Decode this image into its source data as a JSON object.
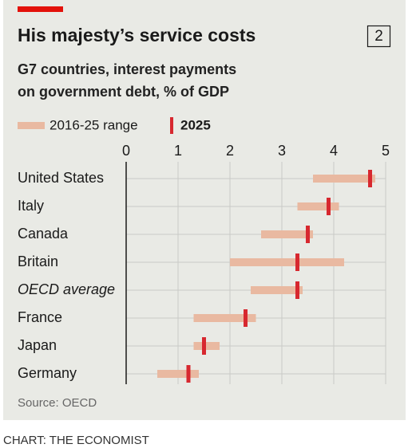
{
  "chart_data": {
    "type": "range-dot",
    "title": "His majesty’s service costs",
    "chart_number": "2",
    "subtitle": [
      "G7 countries, interest payments",
      "on government debt, % of GDP"
    ],
    "categories": [
      "United States",
      "Italy",
      "Canada",
      "Britain",
      "OECD average",
      "France",
      "Japan",
      "Germany"
    ],
    "italic": [
      false,
      false,
      false,
      false,
      true,
      false,
      false,
      false
    ],
    "series": [
      {
        "name": "2016-25 range",
        "color": "#e9b9a1",
        "low": [
          3.6,
          3.3,
          2.6,
          2.0,
          2.4,
          1.3,
          1.3,
          0.6
        ],
        "high": [
          4.8,
          4.1,
          3.6,
          4.2,
          3.4,
          2.5,
          1.8,
          1.4
        ]
      },
      {
        "name": "2025",
        "color": "#d7282f",
        "values": [
          4.7,
          3.9,
          3.5,
          3.3,
          3.3,
          2.3,
          1.5,
          1.2
        ]
      }
    ],
    "xlim": [
      0,
      5
    ],
    "xticks": [
      0,
      1,
      2,
      3,
      4,
      5
    ],
    "grid": true,
    "source": "Source: OECD",
    "credit": "CHART: THE ECONOMIST"
  }
}
